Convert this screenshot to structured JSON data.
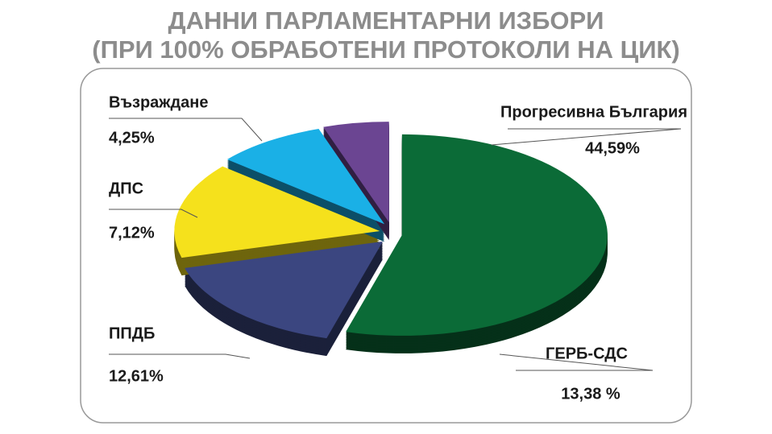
{
  "chart_data": {
    "type": "pie",
    "title": "ДАННИ ПАРЛАМЕНТАРНИ ИЗБОРИ",
    "subtitle": "(ПРИ 100% ОБРАБОТЕНИ ПРОТОКОЛИ НА ЦИК)",
    "categories": [
      "Прогресивна България",
      "ГЕРБ-СДС",
      "ППДБ",
      "ДПС",
      "Възраждане"
    ],
    "values": [
      44.59,
      13.38,
      12.61,
      7.12,
      4.25
    ],
    "value_labels": [
      "44,59%",
      "13,38 %",
      "12,61%",
      "7,12%",
      "4,25%"
    ],
    "colors": [
      "#0b6b37",
      "#3b4680",
      "#f5e11c",
      "#1ab0e6",
      "#6b4592"
    ]
  }
}
